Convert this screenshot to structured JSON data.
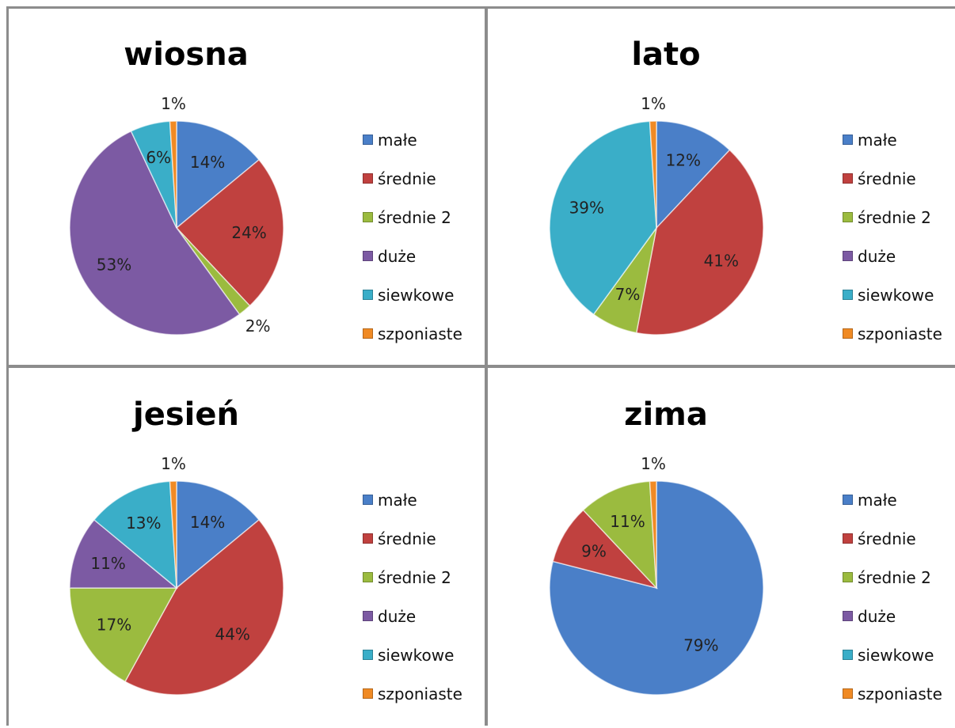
{
  "chart_data": [
    {
      "type": "pie",
      "title": "wiosna",
      "categories": [
        "małe",
        "średnie",
        "średnie 2",
        "duże",
        "siewkowe",
        "szponiaste"
      ],
      "values": [
        14,
        24,
        2,
        53,
        6,
        1
      ],
      "labels": [
        "14%",
        "24%",
        "2%",
        "53%",
        "6%",
        "1%"
      ],
      "legend": "right"
    },
    {
      "type": "pie",
      "title": "lato",
      "categories": [
        "małe",
        "średnie",
        "średnie 2",
        "duże",
        "siewkowe",
        "szponiaste"
      ],
      "values": [
        12,
        41,
        7,
        0,
        39,
        1
      ],
      "labels": [
        "12%",
        "41%",
        "7%",
        "",
        "39%",
        "1%"
      ],
      "legend": "right"
    },
    {
      "type": "pie",
      "title": "jesień",
      "categories": [
        "małe",
        "średnie",
        "średnie 2",
        "duże",
        "siewkowe",
        "szponiaste"
      ],
      "values": [
        14,
        44,
        17,
        11,
        13,
        1
      ],
      "labels": [
        "14%",
        "44%",
        "17%",
        "11%",
        "13%",
        "1%"
      ],
      "legend": "right"
    },
    {
      "type": "pie",
      "title": "zima",
      "categories": [
        "małe",
        "średnie",
        "średnie 2",
        "duże",
        "siewkowe",
        "szponiaste"
      ],
      "values": [
        79,
        9,
        11,
        0,
        0,
        1
      ],
      "labels": [
        "79%",
        "9%",
        "11%",
        "",
        "",
        "1%"
      ],
      "legend": "right"
    }
  ],
  "colors": [
    "#4a7fc8",
    "#c0413f",
    "#9bbb3f",
    "#7c5aa3",
    "#3aaec8",
    "#f08a24"
  ]
}
